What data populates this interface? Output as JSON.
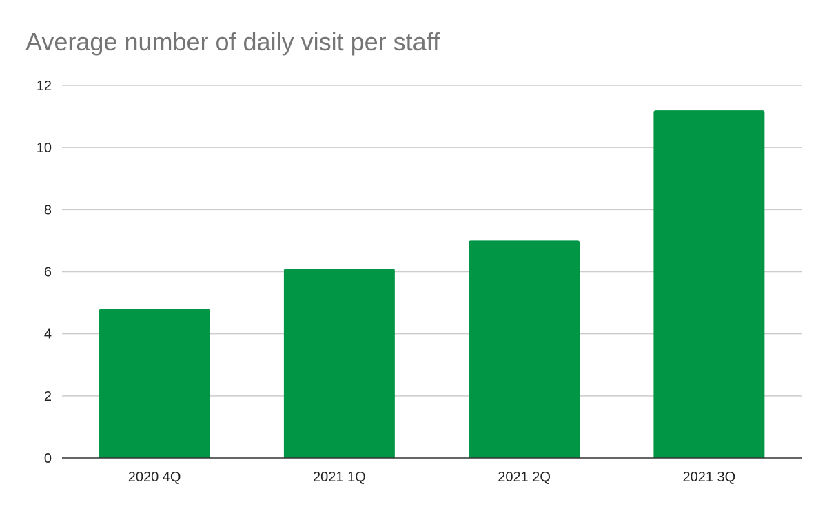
{
  "chart_data": {
    "type": "bar",
    "title": "Average number of daily visit per staff",
    "categories": [
      "2020 4Q",
      "2021 1Q",
      "2021 2Q",
      "2021 3Q"
    ],
    "values": [
      4.8,
      6.1,
      7.0,
      11.2
    ],
    "xlabel": "",
    "ylabel": "",
    "ylim": [
      0,
      12
    ],
    "yticks": [
      0,
      2,
      4,
      6,
      8,
      10,
      12
    ],
    "grid": true,
    "legend": "none",
    "bar_color": "#009645",
    "grid_color": "#cccccc",
    "axis_color": "#333333",
    "title_color": "#757575"
  }
}
